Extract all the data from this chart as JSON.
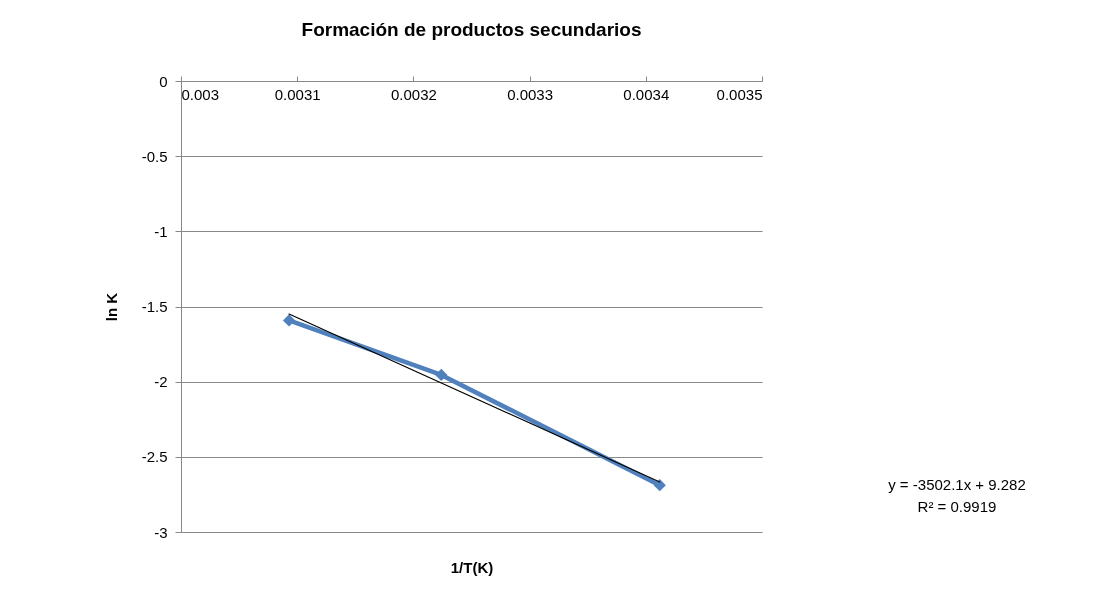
{
  "chart_data": {
    "type": "line",
    "title": "Formación de productos secundarios",
    "xlabel": "1/T(K)",
    "ylabel": "ln K",
    "xlim": [
      0.003,
      0.0035
    ],
    "xticks": [
      0.003,
      0.0031,
      0.0032,
      0.0033,
      0.0034,
      0.0035
    ],
    "ylim": [
      -3,
      0
    ],
    "yticks": [
      -3,
      -2.5,
      -2,
      -1.5,
      -1,
      -0.5,
      0
    ],
    "grid": "y",
    "marker": "diamond",
    "line_style": "solid",
    "series": [
      {
        "color": "#4f81bd",
        "x": [
          0.003093,
          0.003224,
          0.003412
        ],
        "values": [
          -1.593,
          -1.955,
          -2.689
        ]
      },
      {
        "type": "line",
        "marker": "none",
        "color": "#000000",
        "x": [
          0.003093,
          0.003412
        ],
        "values": [
          -1.55,
          -2.667
        ]
      }
    ],
    "annotations": [
      "y = -3502.1x + 9.282\nR² = 0.9919"
    ]
  }
}
